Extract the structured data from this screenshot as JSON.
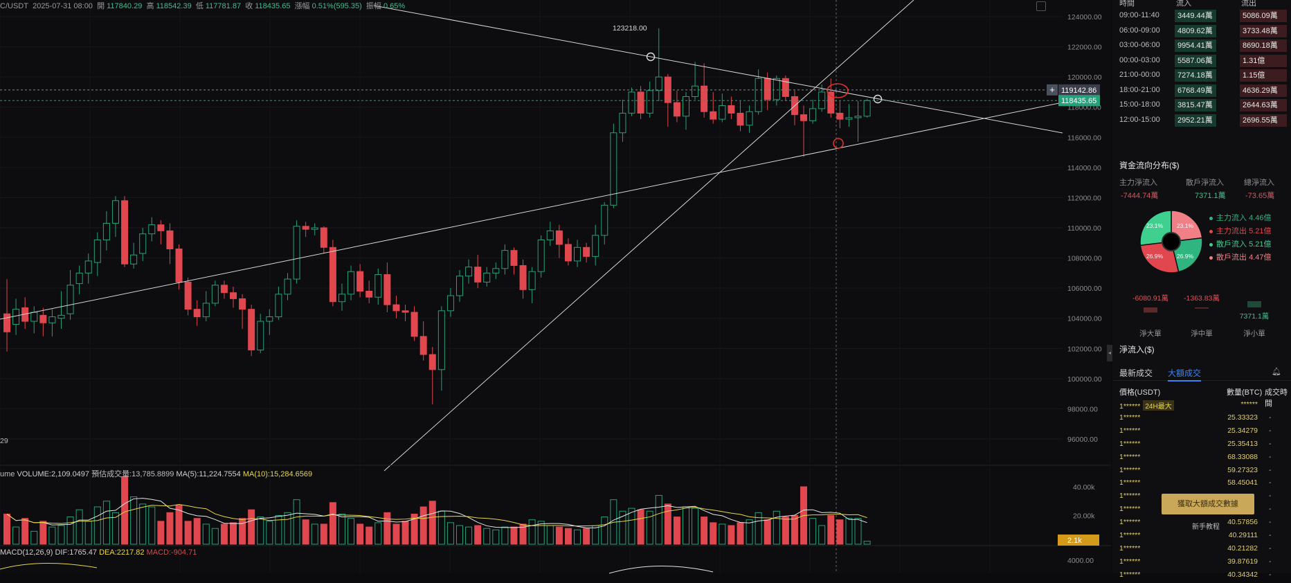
{
  "ohlc": {
    "pair": "C/USDT",
    "date": "2025-07-31 08:00",
    "open_label": "開",
    "open": "117840.29",
    "high_label": "高",
    "high": "118542.39",
    "low_label": "低",
    "low": "117781.87",
    "close_label": "收",
    "close": "118435.65",
    "change_label": "漲幅",
    "change": "0.51%(595.35)",
    "amp_label": "振幅",
    "amp": "0.65%"
  },
  "price_axis": [
    "124000.00",
    "122000.00",
    "120000.00",
    "118000.00",
    "116000.00",
    "114000.00",
    "112000.00",
    "110000.00",
    "108000.00",
    "106000.00",
    "104000.00",
    "102000.00",
    "100000.00",
    "98000.00",
    "96000.00"
  ],
  "price_tags": {
    "crosshair": "119142.86",
    "last": "118435.65"
  },
  "peak_label": "123218.00",
  "left_label": "29",
  "volume_legend": {
    "prefix": "ume",
    "volume": "VOLUME:2,109.0497",
    "est": "預估成交量:13,785.8899",
    "ma5": "MA(5):11,224.7554",
    "ma10": "MA(10):15,284.6569"
  },
  "volume_axis": [
    "40.00k",
    "20.00k"
  ],
  "volume_tag": "2.1k",
  "macd_legend": {
    "name": "MACD(12,26,9)",
    "dif": "DIF:1765.47",
    "dea": "DEA:2217.82",
    "macd": "MACD:-904.71"
  },
  "macd_axis": "4000.00",
  "colors": {
    "up": "#26a17b",
    "down": "#e0474f",
    "bg": "#0d0d0f",
    "accent": "#3b82f6"
  },
  "sidebar": {
    "header": [
      "時間",
      "流入",
      "流出"
    ],
    "flows": [
      {
        "time": "09:00-11:40",
        "in": "3449.44萬",
        "out": "5086.09萬"
      },
      {
        "time": "06:00-09:00",
        "in": "4809.62萬",
        "out": "3733.48萬"
      },
      {
        "time": "03:00-06:00",
        "in": "9954.41萬",
        "out": "8690.18萬"
      },
      {
        "time": "00:00-03:00",
        "in": "5587.06萬",
        "out": "1.31億"
      },
      {
        "time": "21:00-00:00",
        "in": "7274.18萬",
        "out": "1.15億"
      },
      {
        "time": "18:00-21:00",
        "in": "6768.49萬",
        "out": "4636.29萬"
      },
      {
        "time": "15:00-18:00",
        "in": "3815.47萬",
        "out": "2644.63萬"
      },
      {
        "time": "12:00-15:00",
        "in": "2952.21萬",
        "out": "2696.55萬"
      }
    ],
    "dist_title": "資金流向分布($)",
    "dist_labels": [
      "主力淨流入",
      "散戶淨流入",
      "總淨流入"
    ],
    "dist_values": [
      "-7444.74萬",
      "7371.1萬",
      "-73.65萬"
    ],
    "pie": [
      {
        "label": "主力流入",
        "value": "4.46億",
        "pct": 23.1,
        "color": "#2fb57f"
      },
      {
        "label": "主力流出",
        "value": "5.21億",
        "pct": 26.9,
        "color": "#e0474f"
      },
      {
        "label": "散戶流入",
        "value": "5.21億",
        "pct": 26.9,
        "color": "#3fcf8f"
      },
      {
        "label": "散戶流出",
        "value": "4.47億",
        "pct": 23.1,
        "color": "#f07f86"
      }
    ],
    "pie_labels": [
      "23.1%",
      "23.1%",
      "26.9%",
      "26.9%"
    ],
    "bars": {
      "values": [
        "-6080.91萬",
        "-1363.83萬",
        "7371.1萬"
      ],
      "labels": [
        "淨大單",
        "淨中單",
        "淨小單"
      ]
    },
    "net_title": "淨流入($)",
    "tabs": [
      "最新成交",
      "大額成交"
    ],
    "table_head": [
      "價格(USDT)",
      "數量(BTC)",
      "成交時間"
    ],
    "rows": [
      {
        "p": "1******",
        "badge": "24H最大",
        "q": "******",
        "v": "-"
      },
      {
        "p": "1******",
        "q": "25.33323",
        "v": "-"
      },
      {
        "p": "1******",
        "q": "25.34279",
        "v": "-"
      },
      {
        "p": "1******",
        "q": "25.35413",
        "v": "-"
      },
      {
        "p": "1******",
        "q": "68.33088",
        "v": "-"
      },
      {
        "p": "1******",
        "q": "59.27323",
        "v": "-"
      },
      {
        "p": "1******",
        "q": "58.45041",
        "v": "-"
      },
      {
        "p": "1******",
        "q": "",
        "v": "-"
      },
      {
        "p": "1******",
        "q": "",
        "v": "-"
      },
      {
        "p": "1******",
        "q": "40.57856",
        "v": "-"
      },
      {
        "p": "1******",
        "q": "40.29111",
        "v": "-"
      },
      {
        "p": "1******",
        "q": "40.21282",
        "v": "-"
      },
      {
        "p": "1******",
        "q": "39.87619",
        "v": "-"
      },
      {
        "p": "1******",
        "q": "40.34342",
        "v": "-"
      }
    ],
    "fetch_button": "獲取大額成交數據",
    "tutorial": "新手教程"
  }
}
